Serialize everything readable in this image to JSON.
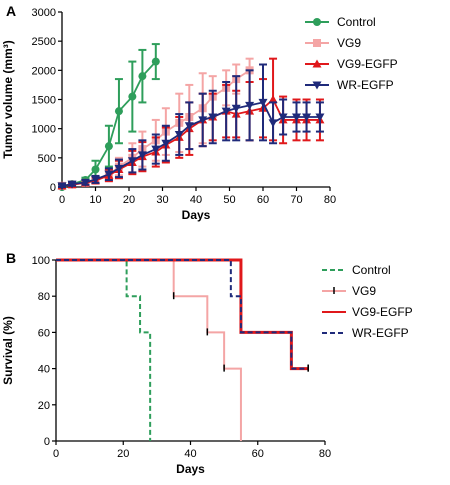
{
  "chart_data": [
    {
      "panel_label": "A",
      "type": "line",
      "xlabel": "Days",
      "ylabel": "Tumor volume (mm³)",
      "xlim": [
        0,
        80
      ],
      "ylim": [
        0,
        3000
      ],
      "xticks": [
        0,
        10,
        20,
        30,
        40,
        50,
        60,
        70,
        80
      ],
      "yticks": [
        0,
        500,
        1000,
        1500,
        2000,
        2500,
        3000
      ],
      "grid": false,
      "legend_position": "top-right",
      "series": [
        {
          "name": "Control",
          "color": "#2e9e5b",
          "marker": "circle",
          "x": [
            0,
            3,
            7,
            10,
            14,
            17,
            21,
            24,
            28
          ],
          "y": [
            0,
            50,
            120,
            300,
            700,
            1300,
            1550,
            1900,
            2150
          ],
          "err": [
            20,
            30,
            40,
            150,
            350,
            550,
            600,
            450,
            300
          ]
        },
        {
          "name": "VG9",
          "color": "#f4a5a5",
          "marker": "square",
          "x": [
            0,
            3,
            7,
            10,
            14,
            17,
            21,
            24,
            28,
            31,
            35,
            38,
            42,
            45,
            49,
            52,
            56
          ],
          "y": [
            20,
            40,
            70,
            120,
            200,
            350,
            500,
            650,
            800,
            950,
            1100,
            1200,
            1350,
            1550,
            1700,
            1850,
            2000
          ],
          "err": [
            20,
            20,
            40,
            60,
            100,
            150,
            250,
            300,
            350,
            400,
            500,
            550,
            600,
            350,
            300,
            250,
            200
          ]
        },
        {
          "name": "VG9-EGFP",
          "color": "#e0181b",
          "marker": "triangle-up",
          "x": [
            0,
            3,
            7,
            10,
            14,
            17,
            21,
            24,
            28,
            31,
            35,
            38,
            42,
            45,
            49,
            52,
            56,
            60,
            63,
            66,
            70,
            73,
            77
          ],
          "y": [
            20,
            40,
            70,
            110,
            200,
            300,
            420,
            520,
            600,
            720,
            850,
            1000,
            1150,
            1200,
            1300,
            1250,
            1300,
            1350,
            1500,
            1150,
            1150,
            1150,
            1150
          ],
          "err": [
            20,
            20,
            40,
            50,
            100,
            150,
            200,
            250,
            250,
            300,
            350,
            450,
            450,
            400,
            450,
            400,
            500,
            500,
            700,
            400,
            350,
            350,
            350
          ]
        },
        {
          "name": "WR-EGFP",
          "color": "#1f2a7a",
          "marker": "triangle-down",
          "x": [
            0,
            3,
            7,
            10,
            14,
            17,
            21,
            24,
            28,
            31,
            35,
            38,
            42,
            45,
            49,
            52,
            56,
            60,
            63,
            66,
            70,
            73,
            77
          ],
          "y": [
            20,
            50,
            80,
            130,
            220,
            320,
            450,
            550,
            650,
            750,
            900,
            1050,
            1150,
            1200,
            1300,
            1350,
            1400,
            1450,
            1100,
            1200,
            1200,
            1200,
            1200
          ],
          "err": [
            20,
            30,
            40,
            60,
            100,
            150,
            200,
            250,
            250,
            300,
            350,
            400,
            450,
            450,
            500,
            550,
            600,
            650,
            350,
            300,
            250,
            250,
            250
          ]
        }
      ]
    },
    {
      "panel_label": "B",
      "type": "line",
      "subtype": "kaplan-meier",
      "xlabel": "Days",
      "ylabel": "Survival (%)",
      "xlim": [
        0,
        80
      ],
      "ylim": [
        0,
        100
      ],
      "xticks": [
        0,
        20,
        40,
        60,
        80
      ],
      "yticks": [
        0,
        20,
        40,
        60,
        80,
        100
      ],
      "grid": false,
      "legend_position": "top-right",
      "series": [
        {
          "name": "Control",
          "color": "#2e9e5b",
          "dash": "dashed",
          "steps": [
            [
              0,
              100
            ],
            [
              21,
              80
            ],
            [
              25,
              60
            ],
            [
              28,
              0
            ]
          ],
          "end": 28,
          "censored": []
        },
        {
          "name": "VG9",
          "color": "#f4a5a5",
          "dash": "solid",
          "steps": [
            [
              0,
              100
            ],
            [
              35,
              80
            ],
            [
              45,
              60
            ],
            [
              50,
              40
            ],
            [
              55,
              0
            ]
          ],
          "end": 55,
          "censored": [
            [
              35,
              80
            ],
            [
              45,
              60
            ],
            [
              50,
              40
            ]
          ]
        },
        {
          "name": "VG9-EGFP",
          "color": "#e0181b",
          "dash": "solid",
          "steps": [
            [
              0,
              100
            ],
            [
              55,
              60
            ],
            [
              70,
              40
            ]
          ],
          "end": 75,
          "censored": [
            [
              75,
              40
            ]
          ]
        },
        {
          "name": "WR-EGFP",
          "color": "#1f2a7a",
          "dash": "dashed",
          "steps": [
            [
              0,
              100
            ],
            [
              52,
              80
            ],
            [
              55,
              60
            ],
            [
              70,
              40
            ]
          ],
          "end": 75,
          "censored": [
            [
              75,
              40
            ]
          ]
        }
      ]
    }
  ]
}
